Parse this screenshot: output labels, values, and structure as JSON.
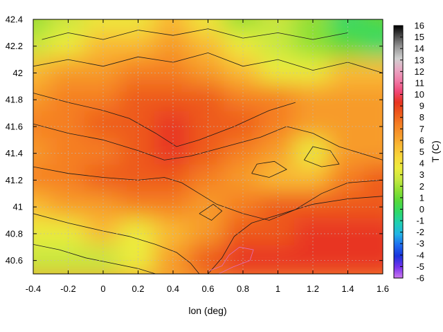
{
  "chart_data": {
    "type": "heatmap",
    "title": "",
    "xlabel": "lon (deg)",
    "ylabel": "",
    "xlim": [
      -0.4,
      1.6
    ],
    "ylim": [
      40.5,
      42.4
    ],
    "xticks": [
      "-0.4",
      "-0.2",
      "0",
      "0.2",
      "0.4",
      "0.6",
      "0.8",
      "1",
      "1.2",
      "1.4",
      "1.6"
    ],
    "yticks": [
      "40.6",
      "40.8",
      "41",
      "41.2",
      "41.4",
      "41.6",
      "41.8",
      "42",
      "42.2",
      "42.4"
    ],
    "grid": true,
    "colorbar": {
      "label": "T (C)",
      "min": -6,
      "max": 16,
      "ticks": [
        "16",
        "15",
        "14",
        "13",
        "12",
        "11",
        "10",
        "9",
        "8",
        "7",
        "6",
        "5",
        "4",
        "3",
        "2",
        "1",
        "0",
        "-1",
        "-2",
        "-3",
        "-4",
        "-5",
        "-6"
      ],
      "colors": [
        "#cc77ee",
        "#7733ee",
        "#1a33dd",
        "#1e6cf0",
        "#22b4e6",
        "#1fcfb4",
        "#2ed96a",
        "#55d93a",
        "#8fe034",
        "#c8e840",
        "#ecec3c",
        "#f8d83a",
        "#f9bb34",
        "#f79b2c",
        "#f57f24",
        "#ee5a1c",
        "#e83420",
        "#f04878",
        "#f07ca8",
        "#e8a8c4",
        "#d0d0d0",
        "#9a9a9a",
        "#505050",
        "#000000"
      ]
    },
    "field_samples": {
      "x": [
        -0.4,
        -0.2,
        0,
        0.2,
        0.4,
        0.6,
        0.8,
        1,
        1.2,
        1.4,
        1.6
      ],
      "y": [
        42.4,
        42.2,
        42,
        41.8,
        41.6,
        41.4,
        41.2,
        41,
        40.8,
        40.6
      ],
      "t": [
        [
          2,
          3,
          4,
          4,
          5,
          4,
          2,
          3,
          2,
          0,
          1
        ],
        [
          3,
          4,
          5,
          5,
          6,
          5,
          4,
          3,
          2,
          1,
          0
        ],
        [
          5,
          6,
          6,
          7,
          7,
          6,
          5,
          4,
          4,
          5,
          5
        ],
        [
          6,
          7,
          7,
          8,
          8,
          8,
          7,
          7,
          6,
          6,
          6
        ],
        [
          7,
          7,
          8,
          8,
          9,
          8,
          8,
          7,
          6,
          6,
          6
        ],
        [
          6,
          7,
          7,
          8,
          9,
          8,
          7,
          6,
          4,
          6,
          6
        ],
        [
          7,
          7,
          8,
          8,
          8,
          7,
          6,
          5,
          5,
          7,
          8
        ],
        [
          5,
          6,
          6,
          7,
          7,
          6,
          7,
          8,
          8,
          8,
          8
        ],
        [
          4,
          4,
          5,
          4,
          5,
          6,
          8,
          8,
          9,
          9,
          9
        ],
        [
          3,
          3,
          3,
          4,
          6,
          8,
          9,
          9,
          9,
          9,
          9
        ]
      ]
    }
  }
}
